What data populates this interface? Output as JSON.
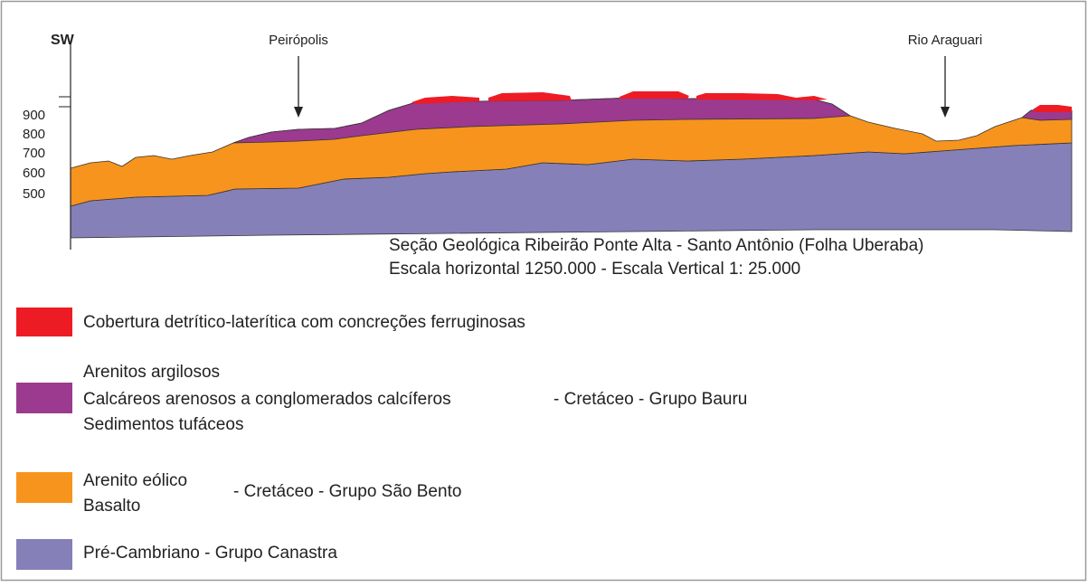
{
  "header": {
    "direction": "SW"
  },
  "places": [
    "Peirópolis",
    "Rio Araguari"
  ],
  "elevation_labels": [
    "900",
    "800",
    "700",
    "600",
    "500"
  ],
  "caption": [
    "Seção Geológica Ribeirão Ponte Alta - Santo Antônio (Folha Uberaba)",
    "Escala horizontal 1250.000 - Escala Vertical 1: 25.000"
  ],
  "legend": [
    {
      "lines": [
        "Cobertura detrítico-laterítica com concreções ferruginosas"
      ]
    },
    {
      "lines": [
        "Arenitos argilosos",
        "Calcáreos arenosos a conglomerados calcíferos",
        "Sedimentos tufáceos"
      ],
      "group": "- Cretáceo - Grupo Bauru"
    },
    {
      "lines": [
        "Arenito eólico",
        "Basalto"
      ],
      "group": "- Cretáceo - Grupo São Bento"
    },
    {
      "lines": [
        "Pré-Cambriano - Grupo Canastra"
      ]
    }
  ]
}
